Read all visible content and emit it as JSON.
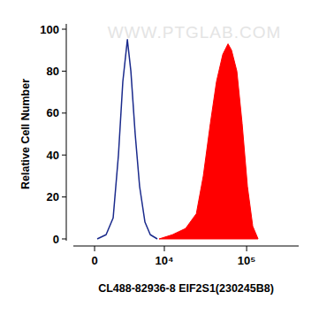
{
  "chart_data": {
    "type": "area",
    "x_label": "CL488-82936-8 EIF2S1(230245B8)",
    "y_label": "Relative Cell Number",
    "watermark": "WWW.PTGLAB.COM",
    "log": "x",
    "xlim": [
      -1840,
      423700
    ],
    "xticks": [
      0,
      {
        "value": 10000,
        "label": "10⁴"
      },
      {
        "value": 100000,
        "label": "10⁵"
      }
    ],
    "ylim": [
      0,
      100
    ],
    "yticks": [
      0,
      20,
      40,
      60,
      80,
      100
    ],
    "series": [
      {
        "type": "line",
        "color": "#1a2a8c",
        "x": [
          217,
          957,
          1587,
          2097,
          2555,
          3068,
          3496,
          4070,
          4720,
          5600,
          6600,
          8140
        ],
        "values": [
          0,
          2,
          10,
          40,
          75,
          95,
          80,
          50,
          25,
          8,
          2,
          0
        ]
      },
      {
        "type": "area",
        "color": "#ff0000",
        "x": [
          8590,
          12600,
          18300,
          24700,
          30000,
          36500,
          43300,
          51600,
          59700,
          65800,
          76300,
          88300,
          102300,
          118600,
          137400
        ],
        "values": [
          0,
          2,
          5,
          12,
          30,
          55,
          75,
          88,
          93,
          90,
          80,
          55,
          25,
          6,
          0
        ]
      }
    ]
  }
}
